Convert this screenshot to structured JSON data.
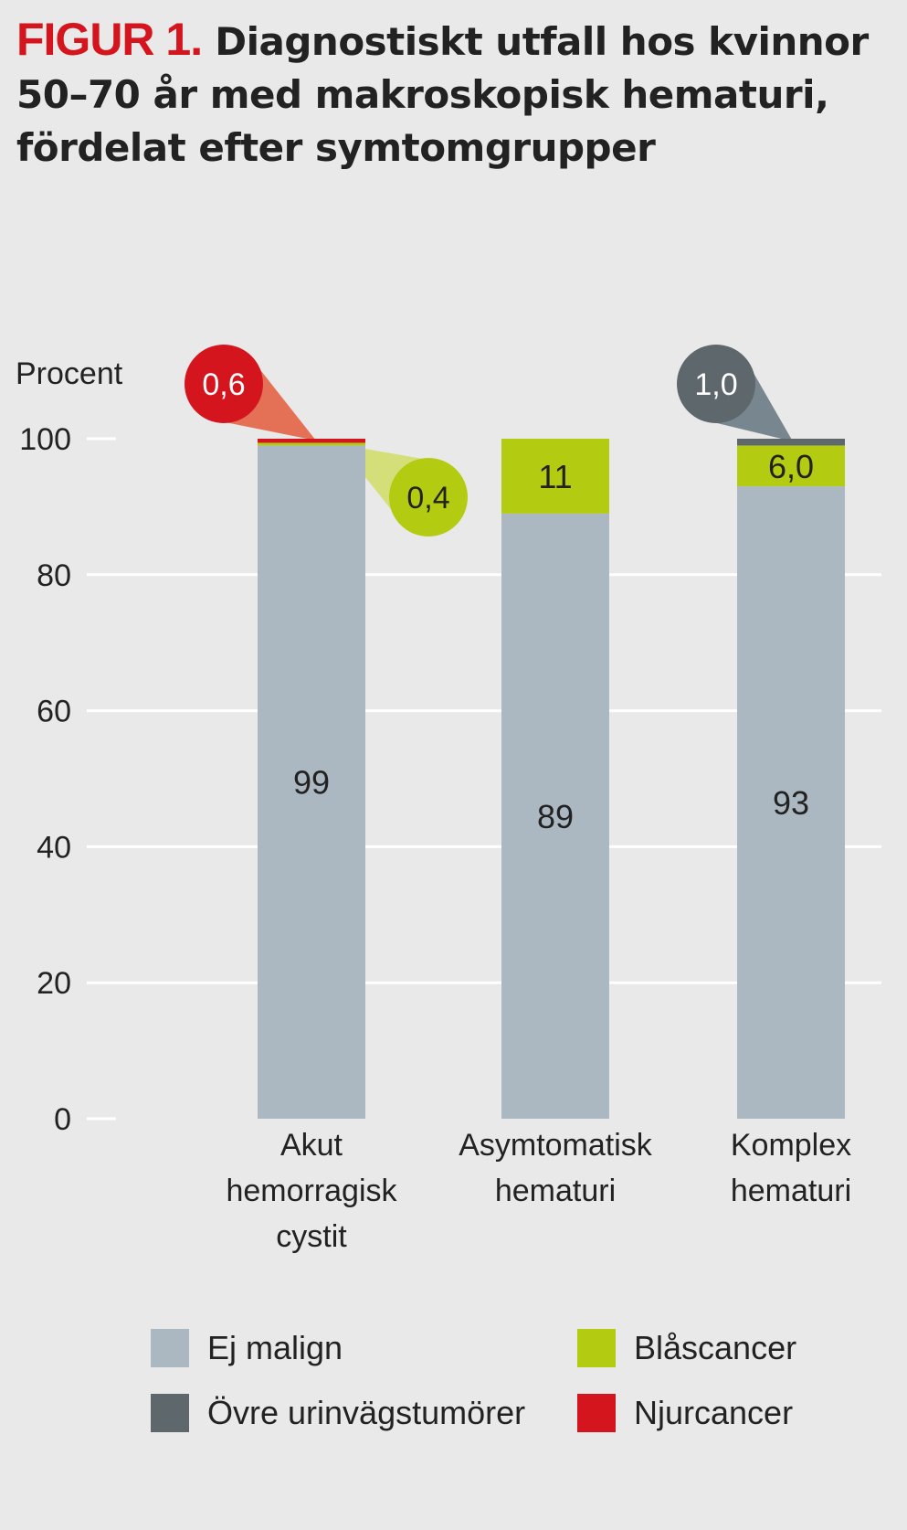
{
  "heading": {
    "figure_label": "FIGUR 1.",
    "title": "Diagnostiskt utfall hos kvinnor 50–70 år med makroskopisk hematuri, fördelat efter symtomgrupper"
  },
  "chart_data": {
    "type": "bar",
    "stacked": true,
    "title": "Diagnostiskt utfall hos kvinnor 50–70 år med makroskopisk hematuri, fördelat efter symtomgrupper",
    "ylabel": "Procent",
    "ylim": [
      0,
      100
    ],
    "yticks": [
      0,
      20,
      40,
      60,
      80,
      100
    ],
    "grid": true,
    "legend_position": "bottom",
    "categories": [
      "Akut hemorragisk cystit",
      "Asymtomatisk hematuri",
      "Komplex hematuri"
    ],
    "category_lines": [
      [
        "Akut",
        "hemorragisk",
        "cystit"
      ],
      [
        "Asymtomatisk",
        "hematuri"
      ],
      [
        "Komplex",
        "hematuri"
      ]
    ],
    "series": [
      {
        "name": "Ej malign",
        "color": "#abb8c1",
        "values": [
          99,
          89,
          93
        ],
        "labels": [
          "99",
          "89",
          "93"
        ]
      },
      {
        "name": "Blåscancer",
        "color": "#b3cb11",
        "values": [
          0.4,
          11,
          6.0
        ],
        "labels": [
          "0,4",
          "11",
          "6,0"
        ]
      },
      {
        "name": "Övre urinvägstumörer",
        "color": "#5e676c",
        "values": [
          0,
          0,
          1.0
        ],
        "labels": [
          "",
          "",
          "1,0"
        ]
      },
      {
        "name": "Njurcancer",
        "color": "#d5151e",
        "values": [
          0.6,
          0,
          0
        ],
        "labels": [
          "0,6",
          "",
          ""
        ]
      }
    ]
  },
  "legend": {
    "items": [
      {
        "label": "Ej malign",
        "color": "#abb8c1"
      },
      {
        "label": "Blåscancer",
        "color": "#b3cb11"
      },
      {
        "label": "Övre urinvägstumörer",
        "color": "#5e676c"
      },
      {
        "label": "Njurcancer",
        "color": "#d5151e"
      }
    ]
  }
}
